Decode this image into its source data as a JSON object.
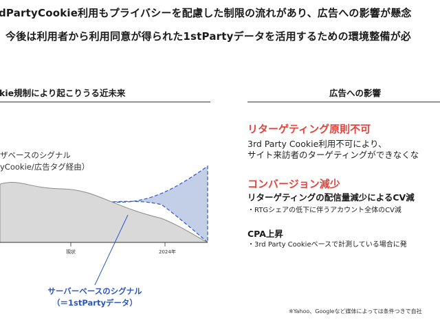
{
  "lead": {
    "line1": "dPartyCookie利用もプライバシーを配慮した制限の流れがあり、広告への影響が懸念",
    "line2": "今後は利用者から利用同意が得られた1stPartyデータを活用するための環境整備が必"
  },
  "left": {
    "title": "kie規制により起こりうる近未来",
    "browser_label_line1": "ザベースのシグナル",
    "browser_label_line2": "yCookie/広告タグ経由）",
    "tick_now": "現状",
    "tick_2024": "2024年",
    "server_label_line1": "サーバーベースのシグナル",
    "server_label_line2": "（＝1stPartyデータ）"
  },
  "right": {
    "title": "広告への影響",
    "item1": {
      "heading": "リターゲティング原則不可",
      "line1": "3rd Party Cookie利用不可により、",
      "line2": "サイト来訪者のターゲティングができなくな"
    },
    "item2": {
      "heading": "コンバージョン減少",
      "subheading": "リターゲティングの配信量減少によるCV減",
      "bullet": "・RTGシェアの低下に伴うアカウント全体のCV減"
    },
    "item3": {
      "heading": "CPA上昇",
      "bullet": "・3rd Party Cookieベースで計測している場合に発"
    }
  },
  "footnote": "※Yahoo、Googleなど媒体によっては条件つきで自社",
  "colors": {
    "accent_red": "#e8413a",
    "server_blue": "#2a55c8",
    "browser_fill": "#d9d9d9",
    "server_fill": "#c3cfe6"
  }
}
